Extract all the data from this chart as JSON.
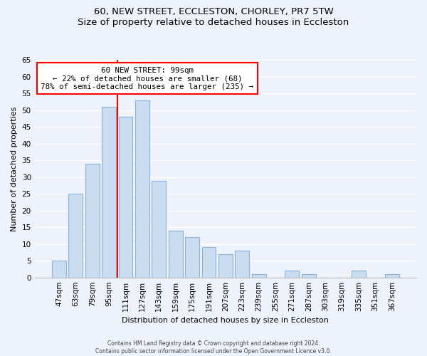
{
  "title": "60, NEW STREET, ECCLESTON, CHORLEY, PR7 5TW",
  "subtitle": "Size of property relative to detached houses in Eccleston",
  "xlabel": "Distribution of detached houses by size in Eccleston",
  "ylabel": "Number of detached properties",
  "bar_labels": [
    "47sqm",
    "63sqm",
    "79sqm",
    "95sqm",
    "111sqm",
    "127sqm",
    "143sqm",
    "159sqm",
    "175sqm",
    "191sqm",
    "207sqm",
    "223sqm",
    "239sqm",
    "255sqm",
    "271sqm",
    "287sqm",
    "303sqm",
    "319sqm",
    "335sqm",
    "351sqm",
    "367sqm"
  ],
  "bar_values": [
    5,
    25,
    34,
    51,
    48,
    53,
    29,
    14,
    12,
    9,
    7,
    8,
    1,
    0,
    2,
    1,
    0,
    0,
    2,
    0,
    1
  ],
  "bar_color": "#c9dcf0",
  "bar_edge_color": "#8ab4d8",
  "vline_index": 3,
  "vline_color": "red",
  "annotation_title": "60 NEW STREET: 99sqm",
  "annotation_line1": "← 22% of detached houses are smaller (68)",
  "annotation_line2": "78% of semi-detached houses are larger (235) →",
  "annotation_box_color": "white",
  "annotation_box_edge": "red",
  "ylim": [
    0,
    65
  ],
  "yticks": [
    0,
    5,
    10,
    15,
    20,
    25,
    30,
    35,
    40,
    45,
    50,
    55,
    60,
    65
  ],
  "footer1": "Contains HM Land Registry data © Crown copyright and database right 2024.",
  "footer2": "Contains public sector information licensed under the Open Government Licence v3.0.",
  "bg_color": "#eef2fa",
  "plot_bg_color": "#eef2fa",
  "grid_color": "#ffffff",
  "title_fontsize": 9.5,
  "label_fontsize": 8,
  "tick_fontsize": 7.5
}
